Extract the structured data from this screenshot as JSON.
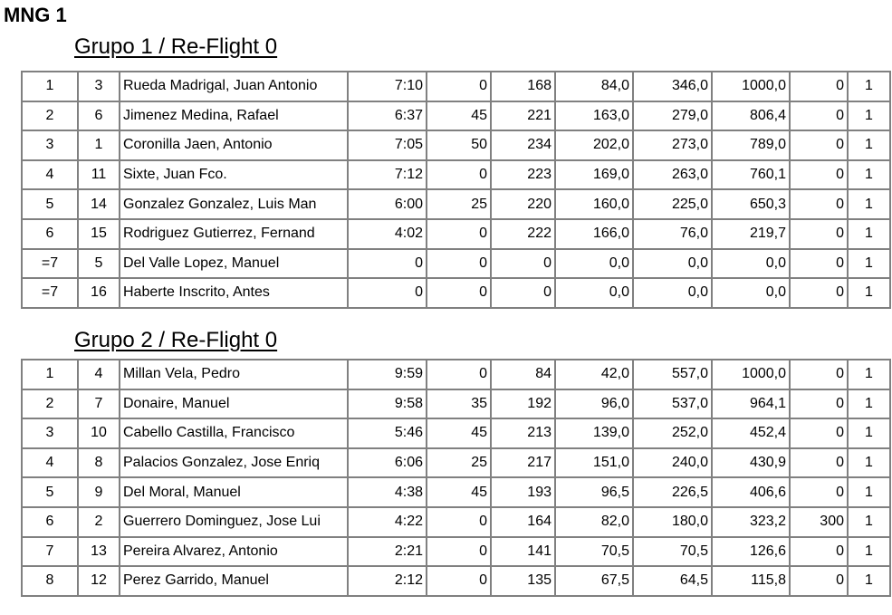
{
  "title": "MNG 1",
  "groups": [
    {
      "heading": "Grupo 1 / Re-Flight 0",
      "rows": [
        [
          "1",
          "3",
          "Rueda Madrigal, Juan Antonio",
          "7:10",
          "0",
          "168",
          "84,0",
          "346,0",
          "1000,0",
          "0",
          "1"
        ],
        [
          "2",
          "6",
          "Jimenez Medina, Rafael",
          "6:37",
          "45",
          "221",
          "163,0",
          "279,0",
          "806,4",
          "0",
          "1"
        ],
        [
          "3",
          "1",
          "Coronilla Jaen, Antonio",
          "7:05",
          "50",
          "234",
          "202,0",
          "273,0",
          "789,0",
          "0",
          "1"
        ],
        [
          "4",
          "11",
          "Sixte, Juan Fco.",
          "7:12",
          "0",
          "223",
          "169,0",
          "263,0",
          "760,1",
          "0",
          "1"
        ],
        [
          "5",
          "14",
          "Gonzalez Gonzalez, Luis Man",
          "6:00",
          "25",
          "220",
          "160,0",
          "225,0",
          "650,3",
          "0",
          "1"
        ],
        [
          "6",
          "15",
          "Rodriguez Gutierrez, Fernand",
          "4:02",
          "0",
          "222",
          "166,0",
          "76,0",
          "219,7",
          "0",
          "1"
        ],
        [
          "=7",
          "5",
          "Del Valle Lopez, Manuel",
          "0",
          "0",
          "0",
          "0,0",
          "0,0",
          "0,0",
          "0",
          "1"
        ],
        [
          "=7",
          "16",
          "Haberte Inscrito, Antes",
          "0",
          "0",
          "0",
          "0,0",
          "0,0",
          "0,0",
          "0",
          "1"
        ]
      ]
    },
    {
      "heading": "Grupo 2 / Re-Flight 0",
      "rows": [
        [
          "1",
          "4",
          "Millan Vela, Pedro",
          "9:59",
          "0",
          "84",
          "42,0",
          "557,0",
          "1000,0",
          "0",
          "1"
        ],
        [
          "2",
          "7",
          "Donaire, Manuel",
          "9:58",
          "35",
          "192",
          "96,0",
          "537,0",
          "964,1",
          "0",
          "1"
        ],
        [
          "3",
          "10",
          "Cabello Castilla, Francisco",
          "5:46",
          "45",
          "213",
          "139,0",
          "252,0",
          "452,4",
          "0",
          "1"
        ],
        [
          "4",
          "8",
          "Palacios Gonzalez, Jose Enriq",
          "6:06",
          "25",
          "217",
          "151,0",
          "240,0",
          "430,9",
          "0",
          "1"
        ],
        [
          "5",
          "9",
          "Del Moral, Manuel",
          "4:38",
          "45",
          "193",
          "96,5",
          "226,5",
          "406,6",
          "0",
          "1"
        ],
        [
          "6",
          "2",
          "Guerrero Dominguez, Jose Lui",
          "4:22",
          "0",
          "164",
          "82,0",
          "180,0",
          "323,2",
          "300",
          "1"
        ],
        [
          "7",
          "13",
          "Pereira Alvarez, Antonio",
          "2:21",
          "0",
          "141",
          "70,5",
          "70,5",
          "126,6",
          "0",
          "1"
        ],
        [
          "8",
          "12",
          "Perez Garrido, Manuel",
          "2:12",
          "0",
          "135",
          "67,5",
          "64,5",
          "115,8",
          "0",
          "1"
        ]
      ]
    }
  ]
}
